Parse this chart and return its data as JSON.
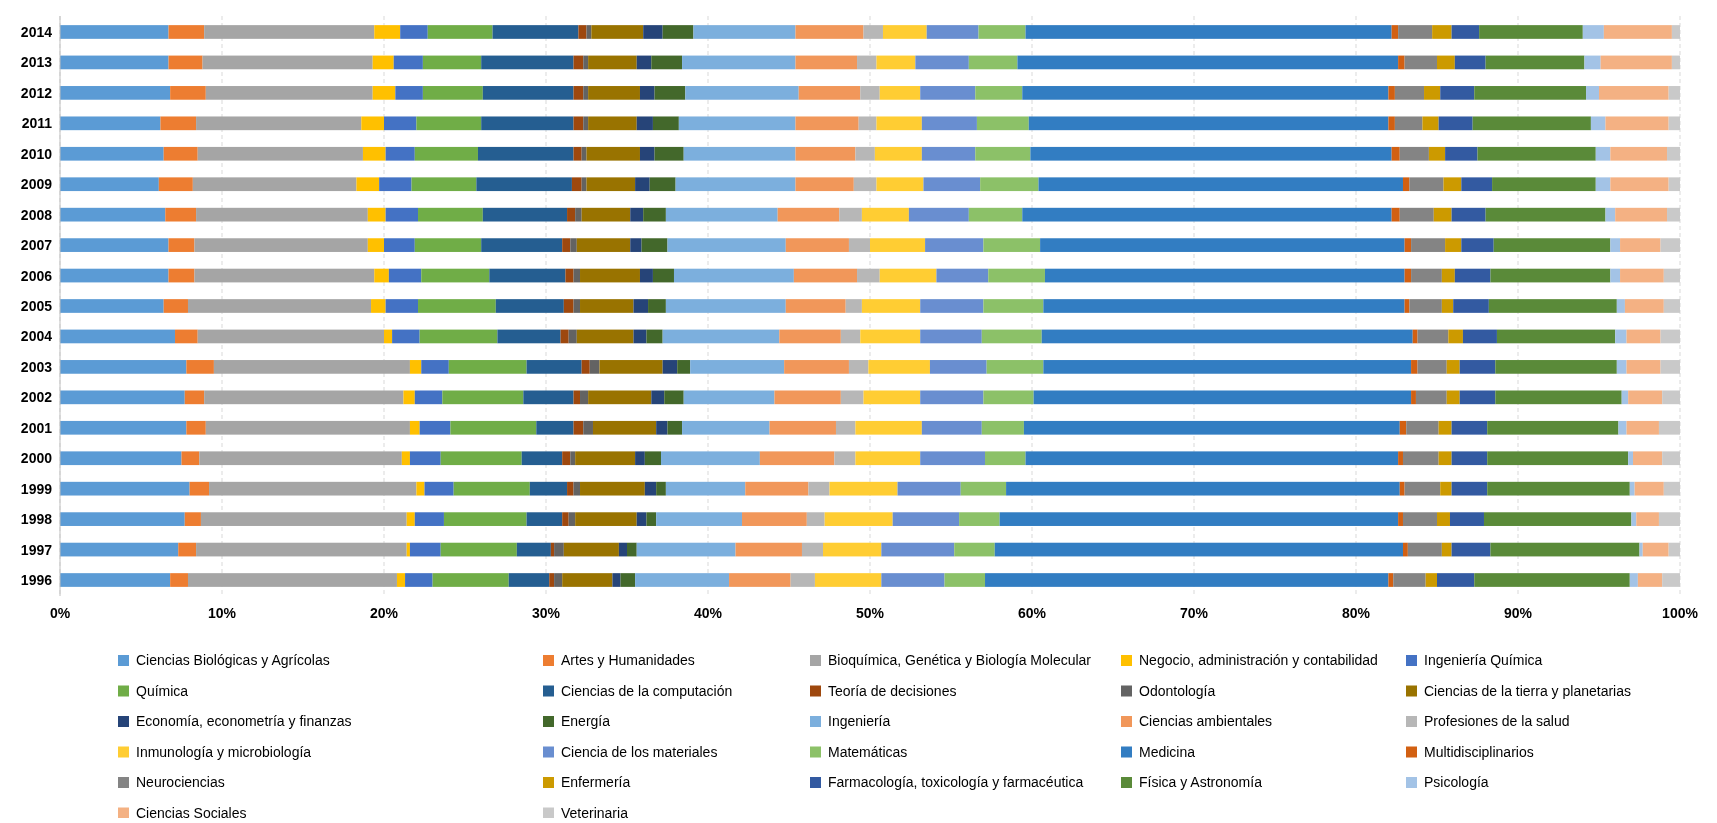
{
  "chart_data": {
    "type": "bar",
    "orientation": "horizontal",
    "stacked": true,
    "grid": "x",
    "legend": "bottom",
    "categories": [
      "2014",
      "2013",
      "2012",
      "2011",
      "2010",
      "2009",
      "2008",
      "2007",
      "2006",
      "2005",
      "2004",
      "2003",
      "2002",
      "2001",
      "2000",
      "1999",
      "1998",
      "1997",
      "1996"
    ],
    "xlim": [
      0,
      100
    ],
    "xticks": [
      {
        "value": 0,
        "label": "0%"
      },
      {
        "value": 10,
        "label": "10%"
      },
      {
        "value": 20,
        "label": "20%"
      },
      {
        "value": 30,
        "label": "30%"
      },
      {
        "value": 40,
        "label": "40%"
      },
      {
        "value": 50,
        "label": "50%"
      },
      {
        "value": 60,
        "label": "60%"
      },
      {
        "value": 70,
        "label": "70%"
      },
      {
        "value": 80,
        "label": "80%"
      },
      {
        "value": 90,
        "label": "90%"
      },
      {
        "value": 100,
        "label": "100%"
      }
    ],
    "series": [
      {
        "name": "Ciencias Biológicas y Agrícolas",
        "color": "#5b9bd5",
        "values": [
          6.7,
          6.7,
          6.8,
          6.2,
          6.4,
          6.1,
          6.5,
          6.7,
          6.7,
          6.4,
          7.1,
          7.8,
          7.7,
          7.8,
          7.5,
          8.0,
          7.7,
          7.3,
          6.8
        ]
      },
      {
        "name": "Artes y Humanidades",
        "color": "#ed7d31",
        "values": [
          2.2,
          2.1,
          2.2,
          2.2,
          2.1,
          2.1,
          1.9,
          1.6,
          1.6,
          1.5,
          1.4,
          1.7,
          1.2,
          1.2,
          1.1,
          1.2,
          1.0,
          1.1,
          1.1
        ]
      },
      {
        "name": "Bioquímica, Genética y Biología Molecular",
        "color": "#a5a5a5",
        "values": [
          10.5,
          10.5,
          10.3,
          10.2,
          10.2,
          10.1,
          10.6,
          10.7,
          11.1,
          11.3,
          11.5,
          12.1,
          12.3,
          12.6,
          12.5,
          12.8,
          12.7,
          13.0,
          12.9
        ]
      },
      {
        "name": "Negocio, administración y contabilidad",
        "color": "#ffc000",
        "values": [
          1.6,
          1.3,
          1.4,
          1.4,
          1.4,
          1.4,
          1.1,
          1.0,
          0.9,
          0.9,
          0.5,
          0.7,
          0.7,
          0.6,
          0.5,
          0.5,
          0.5,
          0.2,
          0.5
        ]
      },
      {
        "name": "Ingeniería Química",
        "color": "#4472c4",
        "values": [
          1.7,
          1.8,
          1.7,
          2.0,
          1.8,
          2.0,
          2.0,
          1.9,
          2.0,
          2.0,
          1.7,
          1.7,
          1.7,
          1.9,
          1.9,
          1.8,
          1.8,
          1.9,
          1.7
        ]
      },
      {
        "name": "Química",
        "color": "#70ad47",
        "values": [
          4.0,
          3.6,
          3.7,
          4.0,
          3.9,
          4.0,
          4.0,
          4.1,
          4.2,
          4.8,
          4.8,
          4.8,
          5.0,
          5.3,
          5.0,
          4.7,
          5.1,
          4.7,
          4.7
        ]
      },
      {
        "name": "Ciencias de la computación",
        "color": "#255e91",
        "values": [
          5.3,
          5.7,
          5.6,
          5.7,
          5.9,
          5.9,
          5.2,
          5.0,
          4.7,
          4.2,
          3.9,
          3.4,
          3.1,
          2.3,
          2.5,
          2.3,
          2.2,
          2.1,
          2.5
        ]
      },
      {
        "name": "Teoría de decisiones",
        "color": "#9e480e",
        "values": [
          0.5,
          0.6,
          0.6,
          0.6,
          0.5,
          0.6,
          0.5,
          0.5,
          0.5,
          0.6,
          0.5,
          0.5,
          0.4,
          0.6,
          0.5,
          0.4,
          0.4,
          0.2,
          0.3
        ]
      },
      {
        "name": "Odontología",
        "color": "#636363",
        "values": [
          0.3,
          0.3,
          0.3,
          0.3,
          0.3,
          0.3,
          0.4,
          0.4,
          0.4,
          0.4,
          0.5,
          0.6,
          0.5,
          0.6,
          0.3,
          0.4,
          0.4,
          0.6,
          0.5
        ]
      },
      {
        "name": "Ciencias de la tierra y planetarias",
        "color": "#997300",
        "values": [
          3.2,
          3.0,
          3.2,
          3.0,
          3.3,
          3.0,
          3.0,
          3.3,
          3.7,
          3.3,
          3.5,
          3.9,
          3.9,
          3.9,
          3.7,
          4.0,
          3.8,
          3.4,
          3.1
        ]
      },
      {
        "name": "Economía, econometría y finanzas",
        "color": "#264478",
        "values": [
          1.2,
          0.9,
          0.9,
          1.0,
          0.9,
          0.9,
          0.8,
          0.7,
          0.8,
          0.9,
          0.8,
          0.9,
          0.8,
          0.7,
          0.6,
          0.7,
          0.6,
          0.5,
          0.5
        ]
      },
      {
        "name": "Energía",
        "color": "#43682b",
        "values": [
          1.9,
          1.9,
          1.9,
          1.6,
          1.8,
          1.6,
          1.4,
          1.6,
          1.3,
          1.1,
          1.0,
          0.8,
          1.2,
          0.9,
          1.0,
          0.6,
          0.6,
          0.6,
          0.9
        ]
      },
      {
        "name": "Ingeniería",
        "color": "#7cafdd",
        "values": [
          6.3,
          7.0,
          7.0,
          7.2,
          6.9,
          7.4,
          6.9,
          7.3,
          7.4,
          7.4,
          7.2,
          5.8,
          5.6,
          5.4,
          6.1,
          4.9,
          5.3,
          6.1,
          5.8
        ]
      },
      {
        "name": "Ciencias ambientales",
        "color": "#f1975a",
        "values": [
          4.2,
          3.8,
          3.8,
          3.9,
          3.7,
          3.6,
          3.8,
          3.9,
          3.9,
          3.7,
          3.8,
          4.0,
          4.1,
          4.1,
          4.6,
          3.9,
          4.0,
          4.1,
          3.8
        ]
      },
      {
        "name": "Profesiones de la salud",
        "color": "#b7b7b7",
        "values": [
          1.2,
          1.2,
          1.2,
          1.1,
          1.2,
          1.4,
          1.4,
          1.3,
          1.4,
          1.0,
          1.2,
          1.2,
          1.4,
          1.2,
          1.3,
          1.3,
          1.1,
          1.3,
          1.5
        ]
      },
      {
        "name": "Inmunología y microbiología",
        "color": "#ffcd33",
        "values": [
          2.7,
          2.4,
          2.5,
          2.8,
          2.9,
          2.9,
          2.9,
          3.4,
          3.5,
          3.6,
          3.7,
          3.8,
          3.5,
          4.1,
          4.0,
          4.2,
          4.2,
          3.6,
          4.1
        ]
      },
      {
        "name": "Ciencia de los materiales",
        "color": "#698ed0",
        "values": [
          3.2,
          3.3,
          3.4,
          3.4,
          3.3,
          3.5,
          3.7,
          3.6,
          3.2,
          3.9,
          3.8,
          3.5,
          3.9,
          3.7,
          4.0,
          3.9,
          4.1,
          4.5,
          3.9
        ]
      },
      {
        "name": "Matemáticas",
        "color": "#8cc168",
        "values": [
          2.9,
          3.0,
          2.9,
          3.2,
          3.4,
          3.6,
          3.3,
          3.5,
          3.5,
          3.7,
          3.7,
          3.5,
          3.1,
          2.6,
          2.5,
          2.8,
          2.5,
          2.5,
          2.5
        ]
      },
      {
        "name": "Medicina",
        "color": "#327dc2",
        "values": [
          22.6,
          23.5,
          22.6,
          22.2,
          22.3,
          22.5,
          22.8,
          22.5,
          22.2,
          22.3,
          22.9,
          22.7,
          23.3,
          23.2,
          23.0,
          24.3,
          24.6,
          25.2,
          24.9
        ]
      },
      {
        "name": "Multidisciplinarios",
        "color": "#d26012",
        "values": [
          0.4,
          0.4,
          0.4,
          0.4,
          0.5,
          0.4,
          0.5,
          0.4,
          0.4,
          0.3,
          0.3,
          0.4,
          0.3,
          0.4,
          0.3,
          0.3,
          0.3,
          0.3,
          0.3
        ]
      },
      {
        "name": "Neurociencias",
        "color": "#848484",
        "values": [
          2.1,
          2.0,
          1.8,
          1.7,
          1.8,
          2.1,
          2.1,
          2.1,
          1.9,
          2.0,
          1.9,
          1.8,
          1.9,
          2.0,
          2.2,
          2.2,
          2.1,
          2.1,
          2.0
        ]
      },
      {
        "name": "Enfermería",
        "color": "#cc9a00",
        "values": [
          1.2,
          1.1,
          1.0,
          1.0,
          1.0,
          1.1,
          1.1,
          1.0,
          0.8,
          0.7,
          0.9,
          0.8,
          0.8,
          0.8,
          0.8,
          0.7,
          0.8,
          0.6,
          0.7
        ]
      },
      {
        "name": "Farmacología, toxicología y farmacéutica",
        "color": "#335aa1",
        "values": [
          1.7,
          1.9,
          2.1,
          2.1,
          2.0,
          1.9,
          2.1,
          2.0,
          2.2,
          2.2,
          2.1,
          2.2,
          2.2,
          2.2,
          2.2,
          2.2,
          2.1,
          2.4,
          2.3
        ]
      },
      {
        "name": "Física y Astronomía",
        "color": "#5a8a39",
        "values": [
          6.4,
          6.1,
          6.9,
          7.3,
          7.3,
          6.4,
          7.4,
          7.2,
          7.4,
          7.9,
          7.3,
          7.5,
          7.8,
          8.1,
          8.7,
          8.8,
          9.1,
          9.2,
          9.6
        ]
      },
      {
        "name": "Psicología",
        "color": "#a3c3e6",
        "values": [
          1.3,
          1.0,
          0.8,
          0.9,
          0.9,
          0.9,
          0.6,
          0.6,
          0.6,
          0.5,
          0.7,
          0.6,
          0.4,
          0.5,
          0.3,
          0.3,
          0.3,
          0.2,
          0.5
        ]
      },
      {
        "name": "Ciencias Sociales",
        "color": "#f4b183",
        "values": [
          4.2,
          4.4,
          4.3,
          3.9,
          3.5,
          3.6,
          3.2,
          2.5,
          2.7,
          2.4,
          2.1,
          2.1,
          2.1,
          2.0,
          1.8,
          1.8,
          1.4,
          1.6,
          1.5
        ]
      },
      {
        "name": "Veterinaria",
        "color": "#c9c9c9",
        "values": [
          0.5,
          0.5,
          0.7,
          0.7,
          0.8,
          0.7,
          0.8,
          1.2,
          1.0,
          1.0,
          1.2,
          1.2,
          1.1,
          1.3,
          1.1,
          1.0,
          1.3,
          0.7,
          1.1
        ]
      }
    ]
  }
}
